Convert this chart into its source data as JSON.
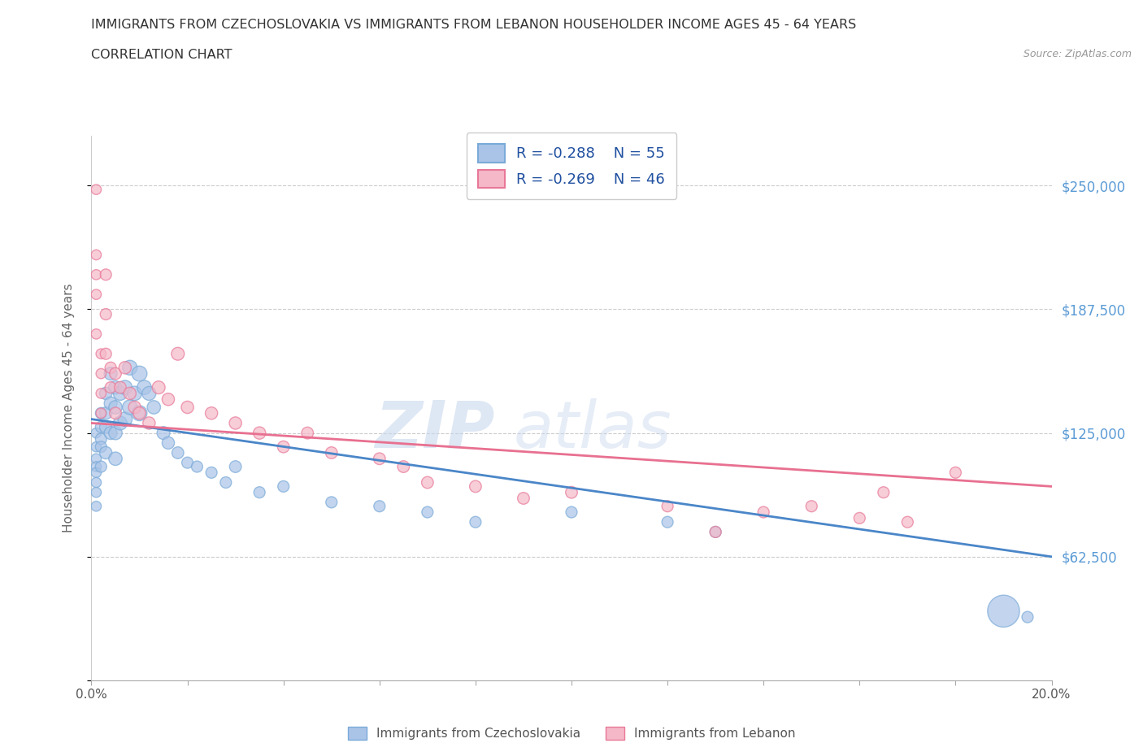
{
  "title_line1": "IMMIGRANTS FROM CZECHOSLOVAKIA VS IMMIGRANTS FROM LEBANON HOUSEHOLDER INCOME AGES 45 - 64 YEARS",
  "title_line2": "CORRELATION CHART",
  "source": "Source: ZipAtlas.com",
  "ylabel": "Householder Income Ages 45 - 64 years",
  "xlim": [
    0.0,
    0.2
  ],
  "ylim": [
    0,
    275000
  ],
  "yticks": [
    0,
    62500,
    125000,
    187500,
    250000
  ],
  "ytick_labels": [
    "",
    "$62,500",
    "$125,000",
    "$187,500",
    "$250,000"
  ],
  "xticks": [
    0.0,
    0.02,
    0.04,
    0.06,
    0.08,
    0.1,
    0.12,
    0.14,
    0.16,
    0.18,
    0.2
  ],
  "xtick_labels": [
    "0.0%",
    "",
    "",
    "",
    "",
    "",
    "",
    "",
    "",
    "",
    "20.0%"
  ],
  "color_czech": "#aac4e8",
  "color_lebanon": "#f5b8c8",
  "edge_czech": "#7aaad8",
  "edge_lebanon": "#e87898",
  "line_color_czech": "#4a86c8",
  "line_color_lebanon": "#e87090",
  "legend_label_czech": "Immigrants from Czechoslovakia",
  "legend_label_lebanon": "Immigrants from Lebanon",
  "watermark_zip": "ZIP",
  "watermark_atlas": "atlas",
  "czech_x": [
    0.001,
    0.001,
    0.001,
    0.001,
    0.001,
    0.001,
    0.001,
    0.001,
    0.002,
    0.002,
    0.002,
    0.002,
    0.002,
    0.003,
    0.003,
    0.003,
    0.003,
    0.004,
    0.004,
    0.004,
    0.005,
    0.005,
    0.005,
    0.005,
    0.006,
    0.006,
    0.007,
    0.007,
    0.008,
    0.008,
    0.009,
    0.01,
    0.01,
    0.011,
    0.012,
    0.013,
    0.015,
    0.016,
    0.018,
    0.02,
    0.022,
    0.025,
    0.028,
    0.03,
    0.035,
    0.04,
    0.05,
    0.06,
    0.07,
    0.08,
    0.1,
    0.12,
    0.13,
    0.19,
    0.195
  ],
  "czech_y": [
    125000,
    118000,
    112000,
    108000,
    105000,
    100000,
    95000,
    88000,
    135000,
    128000,
    122000,
    118000,
    108000,
    145000,
    135000,
    128000,
    115000,
    155000,
    140000,
    125000,
    148000,
    138000,
    125000,
    112000,
    145000,
    130000,
    148000,
    132000,
    158000,
    138000,
    145000,
    155000,
    135000,
    148000,
    145000,
    138000,
    125000,
    120000,
    115000,
    110000,
    108000,
    105000,
    100000,
    108000,
    95000,
    98000,
    90000,
    88000,
    85000,
    80000,
    85000,
    80000,
    75000,
    35000,
    32000
  ],
  "czech_size": [
    80,
    80,
    80,
    80,
    80,
    80,
    80,
    80,
    100,
    100,
    100,
    100,
    100,
    120,
    120,
    120,
    120,
    130,
    130,
    130,
    140,
    140,
    140,
    140,
    150,
    150,
    160,
    160,
    170,
    170,
    160,
    180,
    180,
    160,
    150,
    140,
    130,
    120,
    110,
    100,
    100,
    100,
    100,
    110,
    100,
    100,
    100,
    100,
    100,
    100,
    100,
    100,
    100,
    800,
    100
  ],
  "lebanon_x": [
    0.001,
    0.001,
    0.001,
    0.001,
    0.001,
    0.002,
    0.002,
    0.002,
    0.002,
    0.003,
    0.003,
    0.003,
    0.004,
    0.004,
    0.005,
    0.005,
    0.006,
    0.007,
    0.008,
    0.009,
    0.01,
    0.012,
    0.014,
    0.016,
    0.018,
    0.02,
    0.025,
    0.03,
    0.035,
    0.04,
    0.045,
    0.05,
    0.06,
    0.065,
    0.07,
    0.08,
    0.09,
    0.1,
    0.12,
    0.13,
    0.14,
    0.15,
    0.16,
    0.165,
    0.17,
    0.18
  ],
  "lebanon_y": [
    248000,
    215000,
    205000,
    195000,
    175000,
    165000,
    155000,
    145000,
    135000,
    205000,
    185000,
    165000,
    158000,
    148000,
    155000,
    135000,
    148000,
    158000,
    145000,
    138000,
    135000,
    130000,
    148000,
    142000,
    165000,
    138000,
    135000,
    130000,
    125000,
    118000,
    125000,
    115000,
    112000,
    108000,
    100000,
    98000,
    92000,
    95000,
    88000,
    75000,
    85000,
    88000,
    82000,
    95000,
    80000,
    105000
  ],
  "lebanon_size": [
    80,
    80,
    80,
    80,
    80,
    80,
    80,
    80,
    80,
    100,
    100,
    100,
    100,
    100,
    110,
    110,
    110,
    120,
    120,
    120,
    120,
    120,
    130,
    120,
    130,
    120,
    120,
    120,
    120,
    110,
    110,
    110,
    110,
    110,
    110,
    110,
    110,
    110,
    100,
    100,
    100,
    100,
    100,
    100,
    100,
    100
  ],
  "trend_czech_x0": 0.0,
  "trend_czech_x1": 0.2,
  "trend_czech_y0": 132000,
  "trend_czech_y1": 62500,
  "trend_leb_x0": 0.0,
  "trend_leb_x1": 0.2,
  "trend_leb_y0": 130000,
  "trend_leb_y1": 98000
}
